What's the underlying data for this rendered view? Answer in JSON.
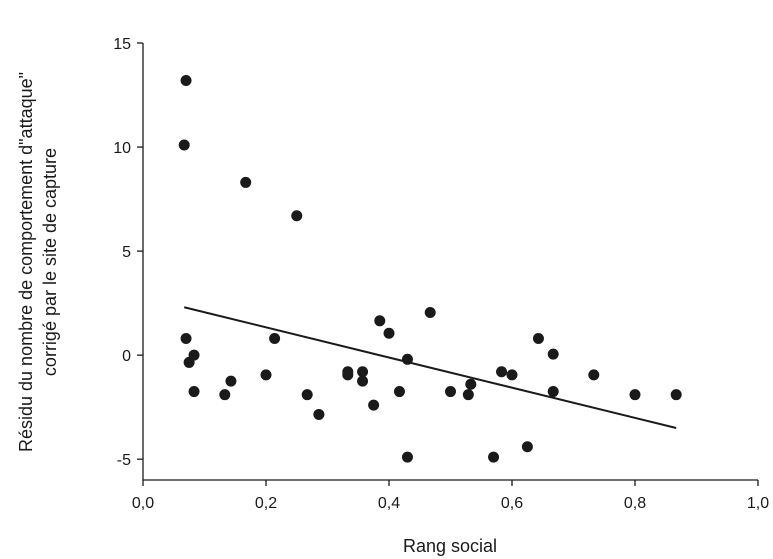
{
  "chart_data": {
    "type": "scatter",
    "title": "",
    "xlabel": "Rang social",
    "ylabel_lines": [
      "Résidu du nombre de comportement d\"attaque\"",
      "corrigé par le site de capture"
    ],
    "xlim": [
      0.0,
      1.0
    ],
    "ylim": [
      -6.0,
      15.0
    ],
    "x_ticks": [
      0.0,
      0.2,
      0.4,
      0.6,
      0.8,
      1.0
    ],
    "x_tick_labels": [
      "0,0",
      "0,2",
      "0,4",
      "0,6",
      "0,8",
      "1,0"
    ],
    "y_ticks": [
      -5,
      0,
      5,
      10,
      15
    ],
    "y_tick_labels": [
      "-5",
      "0",
      "5",
      "10",
      "15"
    ],
    "grid": false,
    "legend": "none",
    "marker_color": "#1a1a1a",
    "series": [
      {
        "points": [
          [
            0.07,
            13.2
          ],
          [
            0.067,
            10.1
          ],
          [
            0.07,
            0.8
          ],
          [
            0.075,
            -0.35
          ],
          [
            0.083,
            0.0
          ],
          [
            0.083,
            -1.75
          ],
          [
            0.133,
            -1.9
          ],
          [
            0.143,
            -1.25
          ],
          [
            0.167,
            8.3
          ],
          [
            0.2,
            -0.95
          ],
          [
            0.214,
            0.8
          ],
          [
            0.25,
            6.7
          ],
          [
            0.267,
            -1.9
          ],
          [
            0.286,
            -2.85
          ],
          [
            0.333,
            -0.8
          ],
          [
            0.333,
            -0.95
          ],
          [
            0.357,
            -0.8
          ],
          [
            0.357,
            -1.25
          ],
          [
            0.375,
            -2.4
          ],
          [
            0.385,
            1.65
          ],
          [
            0.4,
            1.05
          ],
          [
            0.417,
            -1.75
          ],
          [
            0.43,
            -0.2
          ],
          [
            0.43,
            -4.9
          ],
          [
            0.467,
            2.05
          ],
          [
            0.5,
            -1.75
          ],
          [
            0.529,
            -1.9
          ],
          [
            0.533,
            -1.4
          ],
          [
            0.57,
            -4.9
          ],
          [
            0.583,
            -0.8
          ],
          [
            0.6,
            -0.95
          ],
          [
            0.625,
            -4.4
          ],
          [
            0.643,
            0.8
          ],
          [
            0.667,
            0.05
          ],
          [
            0.667,
            -1.75
          ],
          [
            0.733,
            -0.95
          ],
          [
            0.8,
            -1.9
          ],
          [
            0.867,
            -1.9
          ]
        ]
      }
    ],
    "trendline": {
      "x": [
        0.067,
        0.867
      ],
      "y": [
        2.3,
        -3.5
      ]
    }
  }
}
